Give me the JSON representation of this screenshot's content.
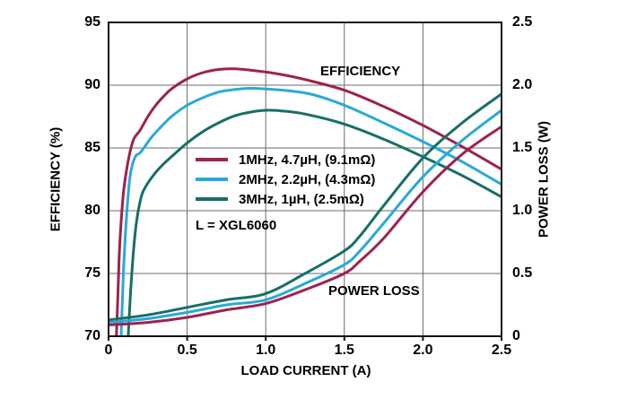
{
  "chart_data": {
    "type": "line",
    "title": "",
    "xlabel": "LOAD CURRENT (A)",
    "ylabel_left": "EFFICIENCY (%)",
    "ylabel_right": "POWER LOSS (W)",
    "xlim": [
      0,
      2.5
    ],
    "ylim_left": [
      70,
      95
    ],
    "ylim_right": [
      0,
      2.5
    ],
    "grid": true,
    "legend_position": "inside-left-center",
    "x_ticks": [
      {
        "value": 0,
        "label": "0"
      },
      {
        "value": 0.5,
        "label": "0.5"
      },
      {
        "value": 1.0,
        "label": "1.0"
      },
      {
        "value": 1.5,
        "label": "1.5"
      },
      {
        "value": 2.0,
        "label": "2.0"
      },
      {
        "value": 2.5,
        "label": "2.5"
      }
    ],
    "y_ticks_left": [
      {
        "value": 95,
        "label": "95"
      },
      {
        "value": 90,
        "label": "90"
      },
      {
        "value": 85,
        "label": "85"
      },
      {
        "value": 80,
        "label": "80"
      },
      {
        "value": 75,
        "label": "75"
      },
      {
        "value": 70,
        "label": "70"
      }
    ],
    "y_ticks_right": [
      {
        "value": 2.5,
        "label": "2.5"
      },
      {
        "value": 2.0,
        "label": "2.0"
      },
      {
        "value": 1.5,
        "label": "1.5"
      },
      {
        "value": 1.0,
        "label": "1.0"
      },
      {
        "value": 0.5,
        "label": "0.5"
      },
      {
        "value": 0,
        "label": "0"
      }
    ],
    "colors": {
      "series_1mhz": "#9e2151",
      "series_2mhz": "#29a9da",
      "series_3mhz": "#176f66",
      "grid": "#6b6b6b",
      "frame": "#141414",
      "text": "#000000"
    },
    "legend": [
      {
        "label": "1MHz, 4.7µH, (9.1mΩ)",
        "color": "#9e2151"
      },
      {
        "label": "2MHz, 2.2µH, (4.3mΩ)",
        "color": "#29a9da"
      },
      {
        "label": "3MHz, 1µH, (2.5mΩ)",
        "color": "#176f66"
      }
    ],
    "annotations": [
      {
        "id": "efficiency-group",
        "text": "EFFICIENCY"
      },
      {
        "id": "power-loss-group",
        "text": "POWER LOSS"
      },
      {
        "id": "inductor-note",
        "text": "L = XGL6060"
      }
    ],
    "series": [
      {
        "name": "efficiency-1mhz",
        "axis": "left",
        "color": "#9e2151",
        "points": [
          [
            0.05,
            70
          ],
          [
            0.06,
            73.5
          ],
          [
            0.07,
            77
          ],
          [
            0.085,
            80
          ],
          [
            0.1,
            82
          ],
          [
            0.13,
            84.3
          ],
          [
            0.16,
            85.7
          ],
          [
            0.2,
            86.4
          ],
          [
            0.25,
            87.5
          ],
          [
            0.3,
            88.4
          ],
          [
            0.35,
            89.1
          ],
          [
            0.4,
            89.7
          ],
          [
            0.5,
            90.5
          ],
          [
            0.6,
            91.0
          ],
          [
            0.7,
            91.25
          ],
          [
            0.8,
            91.3
          ],
          [
            0.9,
            91.2
          ],
          [
            1.0,
            91.05
          ],
          [
            1.1,
            90.85
          ],
          [
            1.25,
            90.45
          ],
          [
            1.5,
            89.6
          ],
          [
            1.75,
            88.3
          ],
          [
            2.0,
            86.8
          ],
          [
            2.25,
            85.1
          ],
          [
            2.5,
            83.3
          ]
        ]
      },
      {
        "name": "efficiency-2mhz",
        "axis": "left",
        "color": "#29a9da",
        "points": [
          [
            0.08,
            70
          ],
          [
            0.09,
            73.5
          ],
          [
            0.1,
            76.5
          ],
          [
            0.12,
            80.5
          ],
          [
            0.14,
            83
          ],
          [
            0.17,
            84.3
          ],
          [
            0.2,
            84.6
          ],
          [
            0.23,
            85.1
          ],
          [
            0.27,
            85.8
          ],
          [
            0.32,
            86.5
          ],
          [
            0.4,
            87.5
          ],
          [
            0.5,
            88.4
          ],
          [
            0.6,
            89.0
          ],
          [
            0.7,
            89.45
          ],
          [
            0.8,
            89.65
          ],
          [
            0.9,
            89.75
          ],
          [
            1.0,
            89.7
          ],
          [
            1.15,
            89.55
          ],
          [
            1.3,
            89.25
          ],
          [
            1.5,
            88.4
          ],
          [
            1.75,
            87.0
          ],
          [
            2.0,
            85.5
          ],
          [
            2.25,
            83.9
          ],
          [
            2.5,
            82.1
          ]
        ]
      },
      {
        "name": "efficiency-3mhz",
        "axis": "left",
        "color": "#176f66",
        "points": [
          [
            0.125,
            70
          ],
          [
            0.14,
            73.5
          ],
          [
            0.16,
            77
          ],
          [
            0.18,
            79.3
          ],
          [
            0.21,
            81.2
          ],
          [
            0.24,
            82.0
          ],
          [
            0.29,
            82.9
          ],
          [
            0.34,
            83.6
          ],
          [
            0.4,
            84.3
          ],
          [
            0.5,
            85.4
          ],
          [
            0.6,
            86.3
          ],
          [
            0.7,
            87.0
          ],
          [
            0.8,
            87.55
          ],
          [
            0.9,
            87.85
          ],
          [
            1.0,
            88.0
          ],
          [
            1.1,
            87.95
          ],
          [
            1.25,
            87.7
          ],
          [
            1.5,
            86.9
          ],
          [
            1.75,
            85.7
          ],
          [
            2.0,
            84.3
          ],
          [
            2.25,
            82.8
          ],
          [
            2.5,
            81.1
          ]
        ]
      },
      {
        "name": "power-loss-1mhz",
        "axis": "right",
        "color": "#9e2151",
        "points": [
          [
            0,
            0.09
          ],
          [
            0.25,
            0.11
          ],
          [
            0.5,
            0.15
          ],
          [
            0.75,
            0.21
          ],
          [
            1.0,
            0.26
          ],
          [
            1.25,
            0.37
          ],
          [
            1.5,
            0.5
          ],
          [
            1.6,
            0.6
          ],
          [
            1.75,
            0.78
          ],
          [
            2.0,
            1.15
          ],
          [
            2.25,
            1.45
          ],
          [
            2.5,
            1.67
          ]
        ]
      },
      {
        "name": "power-loss-2mhz",
        "axis": "right",
        "color": "#29a9da",
        "points": [
          [
            0,
            0.11
          ],
          [
            0.25,
            0.14
          ],
          [
            0.5,
            0.19
          ],
          [
            0.75,
            0.25
          ],
          [
            1.0,
            0.29
          ],
          [
            1.25,
            0.42
          ],
          [
            1.5,
            0.57
          ],
          [
            1.6,
            0.68
          ],
          [
            1.75,
            0.9
          ],
          [
            2.0,
            1.27
          ],
          [
            2.25,
            1.56
          ],
          [
            2.5,
            1.8
          ]
        ]
      },
      {
        "name": "power-loss-3mhz",
        "axis": "right",
        "color": "#176f66",
        "points": [
          [
            0,
            0.13
          ],
          [
            0.25,
            0.17
          ],
          [
            0.5,
            0.23
          ],
          [
            0.75,
            0.29
          ],
          [
            1.0,
            0.34
          ],
          [
            1.25,
            0.5
          ],
          [
            1.5,
            0.68
          ],
          [
            1.6,
            0.8
          ],
          [
            1.75,
            1.04
          ],
          [
            2.0,
            1.42
          ],
          [
            2.25,
            1.7
          ],
          [
            2.5,
            1.93
          ]
        ]
      }
    ]
  }
}
